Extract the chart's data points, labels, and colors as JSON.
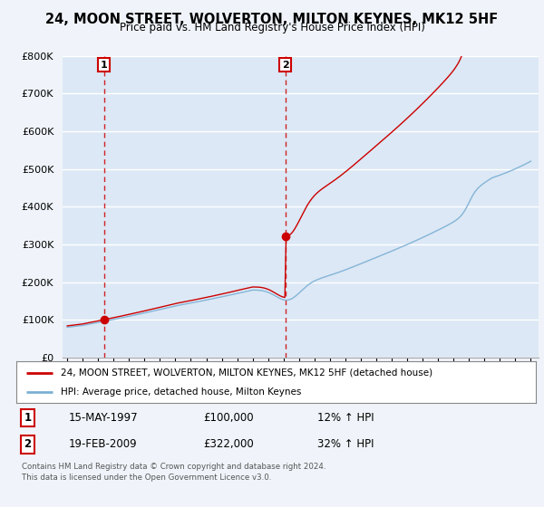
{
  "title": "24, MOON STREET, WOLVERTON, MILTON KEYNES, MK12 5HF",
  "subtitle": "Price paid vs. HM Land Registry's House Price Index (HPI)",
  "ylim": [
    0,
    800000
  ],
  "yticks": [
    0,
    100000,
    200000,
    300000,
    400000,
    500000,
    600000,
    700000,
    800000
  ],
  "ytick_labels": [
    "£0",
    "£100K",
    "£200K",
    "£300K",
    "£400K",
    "£500K",
    "£600K",
    "£700K",
    "£800K"
  ],
  "bg_color": "#dce8f5",
  "fig_bg": "#f0f4fa",
  "grid_color": "#ffffff",
  "red_line_color": "#cc0000",
  "blue_line_color": "#7bafd4",
  "sale1_year": 1997.37,
  "sale1_price": 100000,
  "sale2_year": 2009.12,
  "sale2_price": 322000,
  "legend_line1": "24, MOON STREET, WOLVERTON, MILTON KEYNES, MK12 5HF (detached house)",
  "legend_line2": "HPI: Average price, detached house, Milton Keynes",
  "table_row1": [
    "1",
    "15-MAY-1997",
    "£100,000",
    "12% ↑ HPI"
  ],
  "table_row2": [
    "2",
    "19-FEB-2009",
    "£322,000",
    "32% ↑ HPI"
  ],
  "footer": "Contains HM Land Registry data © Crown copyright and database right 2024.\nThis data is licensed under the Open Government Licence v3.0.",
  "xmin": 1994.7,
  "xmax": 2025.5
}
